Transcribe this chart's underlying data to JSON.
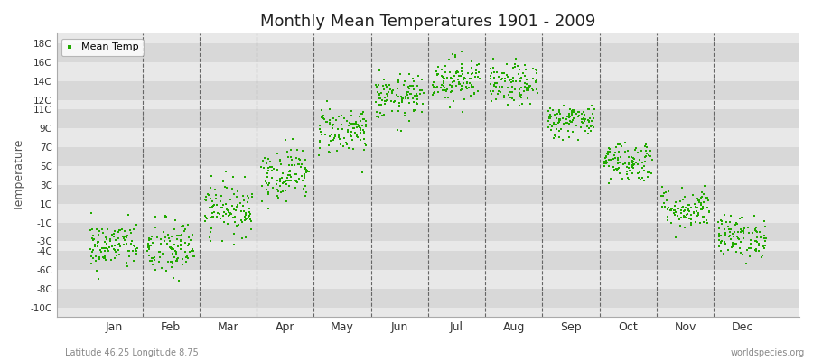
{
  "title": "Monthly Mean Temperatures 1901 - 2009",
  "ylabel": "Temperature",
  "legend_label": "Mean Temp",
  "subtitle_left": "Latitude 46.25 Longitude 8.75",
  "subtitle_right": "worldspecies.org",
  "dot_color": "#22aa00",
  "background_color": "#ffffff",
  "plot_bg_color": "#e8e8e8",
  "yticks": [
    -10,
    -8,
    -6,
    -4,
    -3,
    -1,
    1,
    3,
    5,
    7,
    9,
    11,
    12,
    14,
    16,
    18
  ],
  "ytick_labels": [
    "-10C",
    "-8C",
    "-6C",
    "-4C",
    "-3C",
    "-1C",
    "1C",
    "3C",
    "5C",
    "7C",
    "9C",
    "11C",
    "12C",
    "14C",
    "16C",
    "18C"
  ],
  "ylim": [
    -11,
    19
  ],
  "xlim": [
    0,
    13
  ],
  "months": [
    "Jan",
    "Feb",
    "Mar",
    "Apr",
    "May",
    "Jun",
    "Jul",
    "Aug",
    "Sep",
    "Oct",
    "Nov",
    "Dec"
  ],
  "month_xtick_pos": [
    1,
    2,
    3,
    4,
    5,
    6,
    7,
    8,
    9,
    10,
    11,
    12
  ],
  "month_dividers": [
    1.5,
    2.5,
    3.5,
    4.5,
    5.5,
    6.5,
    7.5,
    8.5,
    9.5,
    10.5,
    11.5
  ],
  "month_means": [
    -3.5,
    -3.8,
    0.5,
    4.2,
    8.8,
    12.2,
    14.2,
    13.5,
    9.8,
    5.5,
    0.5,
    -2.5
  ],
  "month_stds": [
    1.3,
    1.6,
    1.4,
    1.4,
    1.3,
    1.2,
    1.2,
    1.1,
    0.9,
    1.1,
    1.1,
    1.1
  ],
  "n_years": 109,
  "seed": 42
}
